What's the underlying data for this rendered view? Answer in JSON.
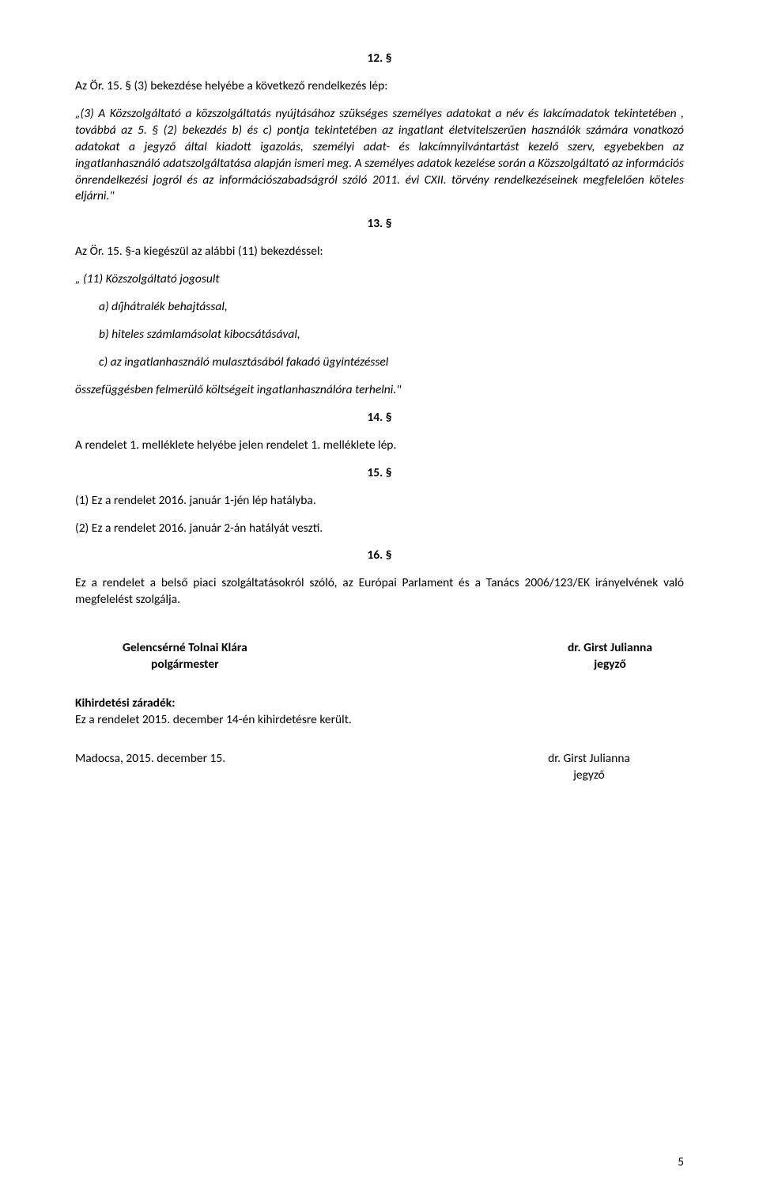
{
  "sections": {
    "s12": "12. §",
    "s13": "13. §",
    "s14": "14. §",
    "s15": "15. §",
    "s16": "16. §"
  },
  "p12_intro": "Az Ör. 15. § (3) bekezdése helyébe a következő rendelkezés lép:",
  "p12_body": "„(3) A Közszolgáltató a közszolgáltatás nyújtásához szükséges személyes adatokat a név és lakcímadatok tekintetében , továbbá az 5. § (2) bekezdés b) és c) pontja tekintetében az ingatlant életvitelszerűen használók számára vonatkozó adatokat a jegyző által kiadott igazolás, személyi adat- és lakcímnyilvántartást kezelő szerv, egyebekben az ingatlanhasználó adatszolgáltatása alapján ismeri meg. A személyes adatok kezelése során a Közszolgáltató az információs önrendelkezési jogról és az információszabadságról szóló 2011. évi CXII. törvény rendelkezéseinek megfelelően köteles eljárni.\"",
  "p13_intro": "Az Ör. 15. §-a kiegészül az alábbi (11) bekezdéssel:",
  "p13_lead": "„ (11) Közszolgáltató jogosult",
  "p13_a": "a) díjhátralék behajtással,",
  "p13_b": "b) hiteles számlamásolat kibocsátásával,",
  "p13_c": "c) az ingatlanhasználó mulasztásából fakadó ügyintézéssel",
  "p13_close": "összefüggésben felmerülő költségeit ingatlanhasználóra terhelni.\"",
  "p14_text": "A rendelet 1. melléklete helyébe jelen rendelet 1. melléklete lép.",
  "p15_1": "(1) Ez a rendelet 2016. január 1-jén lép hatályba.",
  "p15_2": "(2) Ez a rendelet 2016. január 2-án hatályát veszti.",
  "p16_text": "Ez a rendelet a belső piaci szolgáltatásokról szóló, az Európai Parlament és a Tanács 2006/123/EK irányelvének való megfelelést szolgálja.",
  "sig": {
    "left_name": "Gelencsérné Tolnai Klára",
    "left_title": "polgármester",
    "right_name": "dr. Girst Julianna",
    "right_title": "jegyző"
  },
  "zaradek": {
    "title": "Kihirdetési záradék:",
    "text": "Ez a rendelet 2015. december 14-én kihirdetésre került."
  },
  "closing": {
    "place_date": "Madocsa, 2015. december 15.",
    "sign_name": "dr. Girst Julianna",
    "sign_title": "jegyző"
  },
  "page_number": "5"
}
